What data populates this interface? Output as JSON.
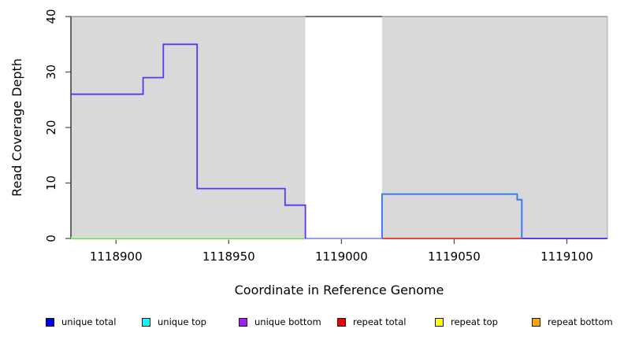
{
  "figure": {
    "xlabel": "Coordinate in Reference Genome",
    "ylabel": "Read Coverage Depth"
  },
  "chart_data": {
    "type": "line",
    "step": true,
    "title": "",
    "xlabel": "Coordinate in Reference Genome",
    "ylabel": "Read Coverage Depth",
    "xlim": [
      1118880,
      1119118
    ],
    "ylim": [
      0,
      40
    ],
    "x_ticks": [
      "1118900",
      "1118950",
      "1119000",
      "1119050",
      "1119100"
    ],
    "x_tick_values": [
      1118900,
      1118950,
      1119000,
      1119050,
      1119100
    ],
    "y_ticks": [
      "0",
      "10",
      "20",
      "30",
      "40"
    ],
    "y_tick_values": [
      0,
      10,
      20,
      30,
      40
    ],
    "grid": false,
    "legend_position": "bottom",
    "background_regions": [
      {
        "name": "covered-region-left",
        "from": 1118880,
        "to": 1118984,
        "color": "#d9d9d9"
      },
      {
        "name": "uncovered-gap",
        "from": 1118984,
        "to": 1119018,
        "color": "#ffffff"
      },
      {
        "name": "covered-region-right",
        "from": 1119018,
        "to": 1119118,
        "color": "#d9d9d9"
      }
    ],
    "series": [
      {
        "name": "unique total",
        "color": "#0000ee",
        "steps": [
          [
            1118880,
            1118912,
            26
          ],
          [
            1118912,
            1118921,
            29
          ],
          [
            1118921,
            1118936,
            35
          ],
          [
            1118936,
            1118975,
            9
          ],
          [
            1118975,
            1118984,
            6
          ],
          [
            1118984,
            1119018,
            0
          ],
          [
            1119018,
            1119078,
            8
          ],
          [
            1119078,
            1119080,
            7
          ],
          [
            1119080,
            1119118,
            0
          ]
        ]
      },
      {
        "name": "unique top",
        "color": "#00ffff",
        "steps": [
          [
            1118880,
            1119018,
            0
          ],
          [
            1119018,
            1119078,
            8
          ],
          [
            1119078,
            1119080,
            7
          ],
          [
            1119080,
            1119118,
            0
          ]
        ]
      },
      {
        "name": "unique bottom",
        "color": "#a020f0",
        "steps": [
          [
            1118880,
            1118912,
            26
          ],
          [
            1118912,
            1118921,
            29
          ],
          [
            1118921,
            1118936,
            35
          ],
          [
            1118936,
            1118975,
            9
          ],
          [
            1118975,
            1118984,
            6
          ],
          [
            1118984,
            1119118,
            0
          ]
        ]
      },
      {
        "name": "repeat total",
        "color": "#ee0000",
        "steps": [
          [
            1119018,
            1119080,
            0
          ]
        ]
      },
      {
        "name": "repeat top",
        "color": "#ffff00",
        "steps": [
          [
            1118880,
            1118984,
            0
          ]
        ]
      },
      {
        "name": "repeat bottom",
        "color": "#ffa500",
        "steps": [
          [
            1118880,
            1118984,
            0
          ]
        ]
      }
    ],
    "rendered_lines": [
      {
        "name": "repeat-top-zero-line",
        "color": "#eeeeb0",
        "width": 3.5,
        "points": [
          [
            1118880,
            0
          ],
          [
            1118984,
            0
          ]
        ]
      },
      {
        "name": "unique-left-zero-line",
        "color": "#8fd48f",
        "width": 2,
        "points": [
          [
            1118880,
            0
          ],
          [
            1118984,
            0
          ]
        ]
      },
      {
        "name": "gap-zero-line",
        "color": "#9a9af2",
        "width": 2,
        "points": [
          [
            1118984,
            0
          ],
          [
            1119018,
            0
          ]
        ]
      },
      {
        "name": "repeat-total-zero-line",
        "color": "#e8433f",
        "width": 2,
        "points": [
          [
            1119018,
            0
          ],
          [
            1119080,
            0
          ]
        ]
      },
      {
        "name": "right-zero-line",
        "color": "#5b3bf0",
        "width": 2,
        "points": [
          [
            1119080,
            0
          ],
          [
            1119118,
            0
          ]
        ]
      },
      {
        "name": "gap-clipped-top-line",
        "color": "#4d4d4d",
        "width": 1.6,
        "points": [
          [
            1118984,
            40
          ],
          [
            1119018,
            40
          ]
        ]
      },
      {
        "name": "unique-bottom-step",
        "color": "#5b36f2",
        "width": 1.8,
        "points": [
          [
            1118880,
            26
          ],
          [
            1118912,
            26
          ],
          [
            1118912,
            29
          ],
          [
            1118921,
            29
          ],
          [
            1118921,
            35
          ],
          [
            1118936,
            35
          ],
          [
            1118936,
            9
          ],
          [
            1118975,
            9
          ],
          [
            1118975,
            6
          ],
          [
            1118984,
            6
          ],
          [
            1118984,
            0
          ]
        ]
      },
      {
        "name": "unique-top-step",
        "color": "#3c7ceb",
        "width": 2,
        "points": [
          [
            1119018,
            0
          ],
          [
            1119018,
            8
          ],
          [
            1119078,
            8
          ],
          [
            1119078,
            7
          ],
          [
            1119080,
            7
          ],
          [
            1119080,
            0
          ]
        ]
      }
    ],
    "frame_colors": {
      "left": "#2b2b2b",
      "top": "#8a8a8a",
      "right": "#aaaaaa",
      "tick": "#555555"
    }
  },
  "legend": {
    "items": [
      {
        "label": "unique total",
        "color": "#0000ee"
      },
      {
        "label": "unique top",
        "color": "#00ffff"
      },
      {
        "label": "unique bottom",
        "color": "#a020f0"
      },
      {
        "label": "repeat total",
        "color": "#ee0000"
      },
      {
        "label": "repeat top",
        "color": "#ffff00"
      },
      {
        "label": "repeat bottom",
        "color": "#ffa500"
      }
    ]
  }
}
